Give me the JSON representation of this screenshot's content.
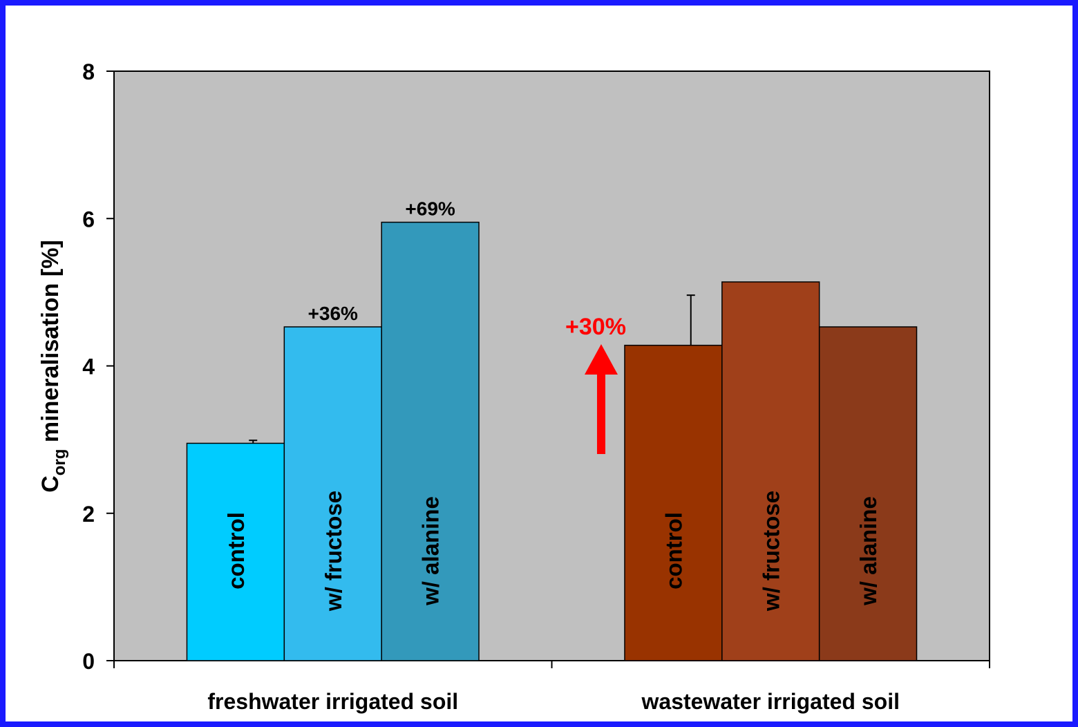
{
  "chart_data": {
    "type": "bar",
    "ylabel": {
      "main": "C",
      "sub": "org",
      "rest": " mineralisation [%]"
    },
    "categories": [
      "freshwater irrigated soil",
      "wastewater irrigated soil"
    ],
    "series": [
      {
        "name": "control",
        "colors": [
          "#00ccff",
          "#993300"
        ],
        "values": [
          2.95,
          4.28
        ],
        "errors": [
          0.04,
          0.68
        ],
        "annotations": [
          null,
          null
        ]
      },
      {
        "name": "w/ fructose",
        "colors": [
          "#33bbee",
          "#a0401a"
        ],
        "values": [
          4.53,
          5.14
        ],
        "errors": [
          null,
          null
        ],
        "annotations": [
          "+36%",
          null
        ]
      },
      {
        "name": "w/ alanine",
        "colors": [
          "#3399bb",
          "#8b3a1a"
        ],
        "values": [
          5.95,
          4.53
        ],
        "errors": [
          null,
          null
        ],
        "annotations": [
          "+69%",
          null
        ]
      }
    ],
    "arrow_annotation": {
      "text": "+30%",
      "color": "#ff0000"
    },
    "ylim": [
      0,
      8
    ],
    "yticks": [
      0,
      2,
      4,
      6,
      8
    ],
    "plot_background": "#c0c0c0"
  }
}
